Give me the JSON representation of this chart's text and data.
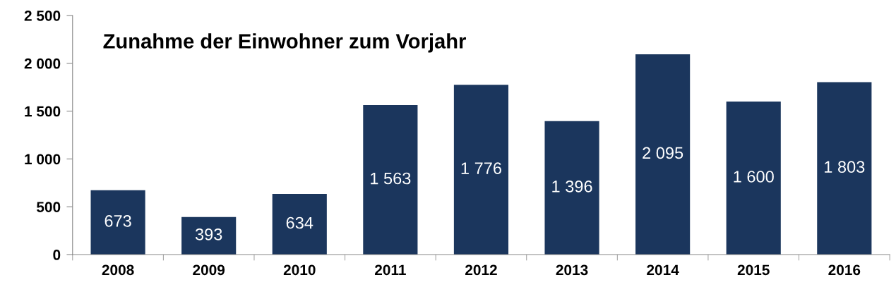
{
  "chart_data": {
    "type": "bar",
    "title": "Zunahme der Einwohner zum Vorjahr",
    "categories": [
      "2008",
      "2009",
      "2010",
      "2011",
      "2012",
      "2013",
      "2014",
      "2015",
      "2016"
    ],
    "values": [
      673,
      393,
      634,
      1563,
      1776,
      1396,
      2095,
      1600,
      1803
    ],
    "value_labels": [
      "673",
      "393",
      "634",
      "1 563",
      "1 776",
      "1 396",
      "2 095",
      "1 600",
      "1 803"
    ],
    "color": "#1b365d",
    "ylim": [
      0,
      2500
    ],
    "yticks": [
      0,
      500,
      {
        "value": 1000,
        "label": "1 000"
      },
      {
        "value": 1500,
        "label": "1 500"
      },
      {
        "value": 2000,
        "label": "2 000"
      },
      {
        "value": 2500,
        "label": "2 500"
      }
    ],
    "grid": false,
    "legend": false
  }
}
